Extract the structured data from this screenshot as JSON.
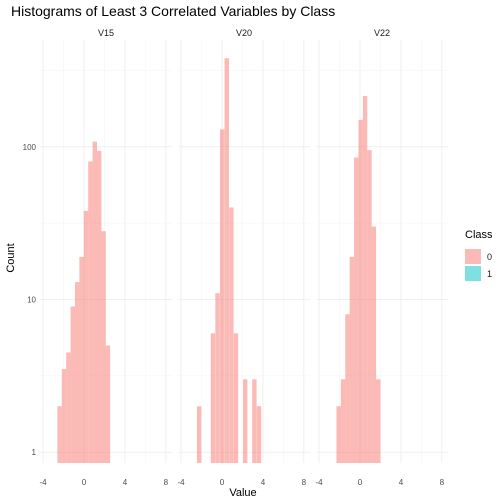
{
  "chart_data": {
    "type": "bar",
    "title": "Histograms of Least 3 Correlated Variables by Class",
    "xlabel": "Value",
    "ylabel": "Count",
    "y_scale": "log10",
    "ylim": [
      0.85,
      500
    ],
    "y_ticks": [
      1,
      10,
      100
    ],
    "xlim": [
      -4.3,
      8.6
    ],
    "x_ticks": [
      -4,
      0,
      4,
      8
    ],
    "bin_width": 0.43,
    "legend": {
      "title": "Class",
      "placement": "right",
      "entries": [
        {
          "label": "0",
          "color": "#F8766D"
        },
        {
          "label": "1",
          "color": "#00BFC4"
        }
      ]
    },
    "panels": [
      {
        "name": "V15",
        "series": [
          {
            "class": "0",
            "x_start": [
              -2.6,
              -2.17,
              -1.74,
              -1.31,
              -0.88,
              -0.45,
              -0.02,
              0.41,
              0.84,
              1.27,
              1.7,
              2.13
            ],
            "values": [
              2,
              3.5,
              4.5,
              9,
              13,
              19,
              38,
              80,
              108,
              94,
              28,
              5
            ]
          },
          {
            "class": "1",
            "x_start": [],
            "values": []
          }
        ]
      },
      {
        "name": "V20",
        "series": [
          {
            "class": "0",
            "x_start": [
              -2.45,
              -1.1,
              -0.65,
              -0.2,
              0.25,
              0.7,
              1.15,
              2.05,
              2.95,
              3.4
            ],
            "values": [
              2,
              6,
              11,
              130,
              380,
              40,
              6,
              3,
              3,
              2
            ]
          },
          {
            "class": "1",
            "x_start": [],
            "values": []
          }
        ]
      },
      {
        "name": "V22",
        "series": [
          {
            "class": "0",
            "x_start": [
              -2.3,
              -1.87,
              -1.44,
              -1.01,
              -0.58,
              -0.15,
              0.28,
              0.71,
              1.14,
              1.57
            ],
            "values": [
              2,
              3,
              8,
              19,
              85,
              150,
              215,
              95,
              30,
              3
            ]
          },
          {
            "class": "1",
            "x_start": [],
            "values": []
          }
        ]
      }
    ]
  }
}
